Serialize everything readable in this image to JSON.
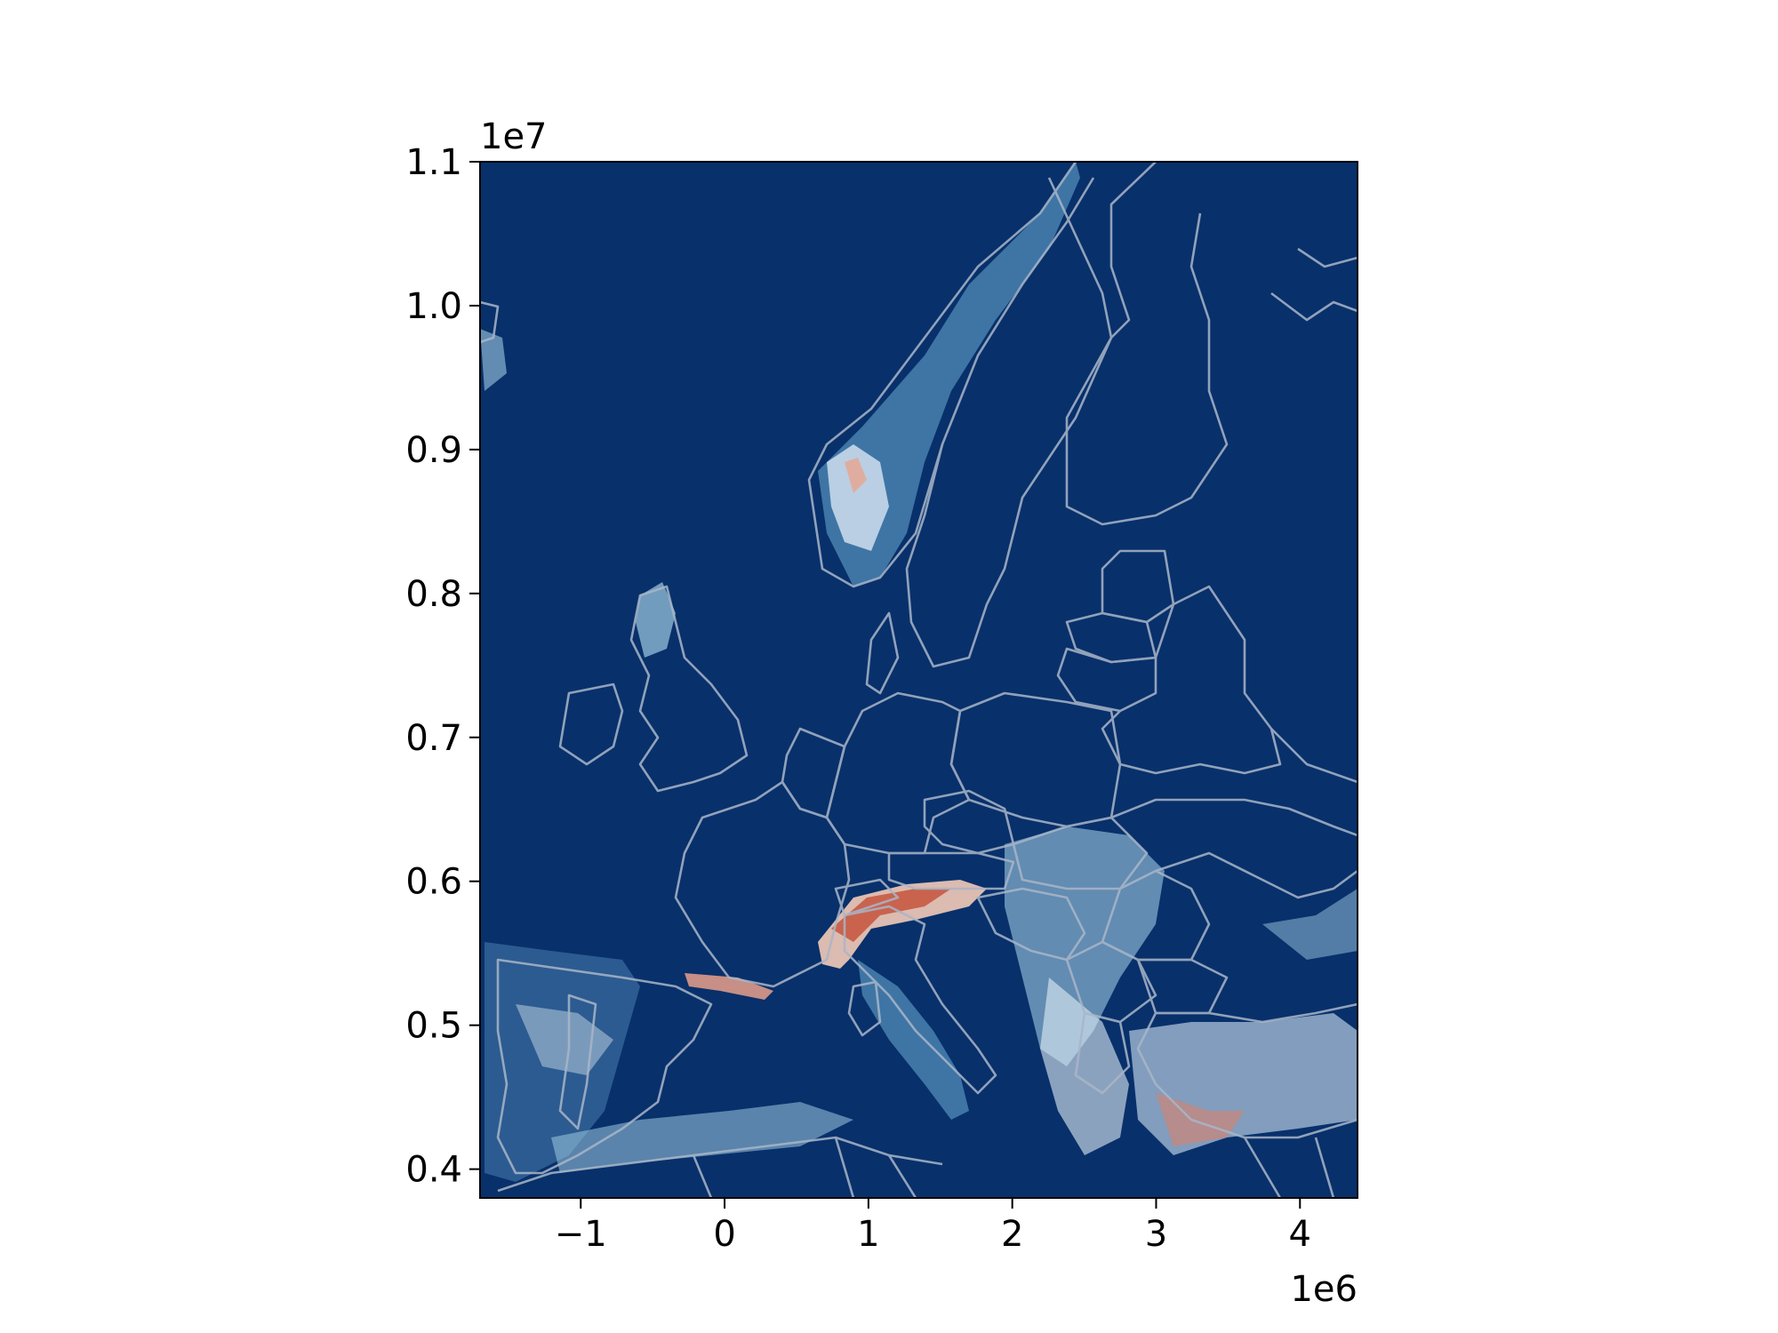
{
  "chart_data": {
    "type": "raster-map",
    "title": "",
    "xlabel": "",
    "ylabel": "",
    "x_range": [
      -1700000,
      4400000
    ],
    "y_range": [
      3800000,
      11000000
    ],
    "x_ticks": [
      -1000000,
      0,
      1000000,
      2000000,
      3000000,
      4000000
    ],
    "x_tick_labels": [
      "−1",
      "0",
      "1",
      "2",
      "3",
      "4"
    ],
    "y_ticks": [
      4000000,
      5000000,
      6000000,
      7000000,
      8000000,
      9000000,
      10000000,
      11000000
    ],
    "y_tick_labels": [
      "0.4",
      "0.5",
      "0.6",
      "0.7",
      "0.8",
      "0.9",
      "1.0",
      "1.1"
    ],
    "x_offset_label": "1e6",
    "y_offset_label": "1e7",
    "colormap": {
      "background": "#08306b",
      "low": "#6baed6",
      "mid": "#f7f7f7",
      "high": "#b2182b"
    },
    "borders_color": "#a9b6c8",
    "grid": false,
    "legend": "none"
  }
}
